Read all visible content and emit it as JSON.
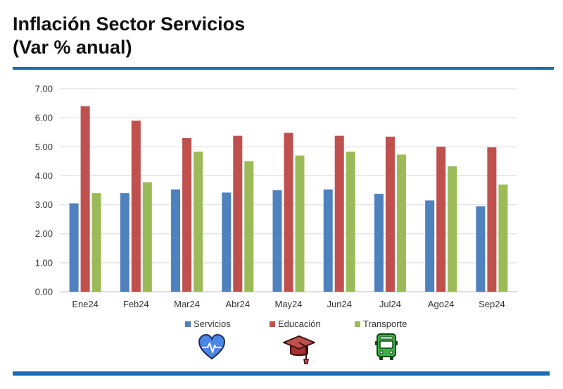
{
  "header": {
    "title_line1": "Inflación Sector Servicios",
    "title_line2": "(Var % anual)"
  },
  "chart_data": {
    "type": "bar",
    "title": "Inflación Sector Servicios (Var % anual)",
    "xlabel": "",
    "ylabel": "",
    "ylim": [
      0,
      7
    ],
    "yticks": [
      "0.00",
      "1.00",
      "2.00",
      "3.00",
      "4.00",
      "5.00",
      "6.00",
      "7.00"
    ],
    "grid": true,
    "legend_position": "bottom",
    "categories": [
      "Ene24",
      "Feb24",
      "Mar24",
      "Abr24",
      "May24",
      "Jun24",
      "Jul24",
      "Ago24",
      "Sep24"
    ],
    "series": [
      {
        "name": "Servicios",
        "color": "#4e81bd",
        "values": [
          3.05,
          3.4,
          3.53,
          3.42,
          3.5,
          3.53,
          3.38,
          3.15,
          2.95
        ]
      },
      {
        "name": "Educación",
        "color": "#c0504d",
        "values": [
          6.4,
          5.9,
          5.3,
          5.38,
          5.48,
          5.38,
          5.35,
          5.0,
          4.98
        ]
      },
      {
        "name": "Transporte",
        "color": "#9bbb59",
        "values": [
          3.4,
          3.78,
          4.83,
          4.5,
          4.7,
          4.83,
          4.73,
          4.33,
          3.7
        ]
      }
    ]
  },
  "legend_icons": [
    "heart-pulse-icon",
    "graduation-cap-icon",
    "bus-icon"
  ]
}
